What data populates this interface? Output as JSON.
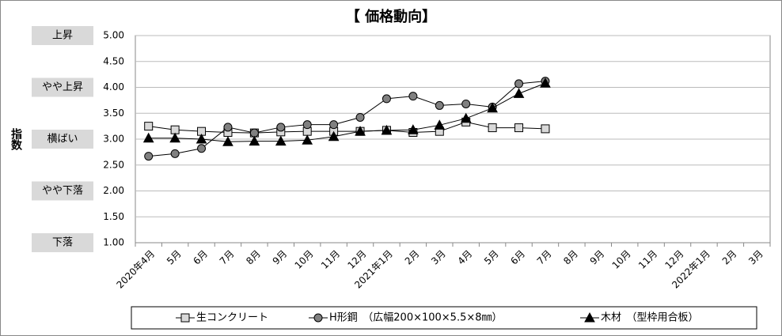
{
  "chart_data": {
    "type": "line",
    "title": "【 価格動向】",
    "y_label": "指数",
    "categories": [
      "2020年4月",
      "5月",
      "6月",
      "7月",
      "8月",
      "9月",
      "10月",
      "11月",
      "12月",
      "2021年1月",
      "2月",
      "3月",
      "4月",
      "5月",
      "6月",
      "7月",
      "8月",
      "9月",
      "10月",
      "11月",
      "12月",
      "2022年1月",
      "2月",
      "3月"
    ],
    "series": [
      {
        "name": "生コンクリート",
        "color": "#000000",
        "marker": "square",
        "marker_color": "#d9d9d9",
        "values": [
          3.25,
          3.18,
          3.15,
          3.13,
          3.12,
          3.14,
          3.15,
          3.15,
          3.15,
          3.17,
          3.13,
          3.15,
          3.33,
          3.22,
          3.22,
          3.2,
          null,
          null,
          null,
          null,
          null,
          null,
          null,
          null
        ]
      },
      {
        "name": "H形鋼　（広幅200×100×5.5×8㎜）",
        "color": "#000000",
        "marker": "circle",
        "marker_color": "#808080",
        "values": [
          2.67,
          2.72,
          2.82,
          3.23,
          3.12,
          3.23,
          3.28,
          3.28,
          3.42,
          3.78,
          3.83,
          3.65,
          3.68,
          3.62,
          4.07,
          4.12,
          null,
          null,
          null,
          null,
          null,
          null,
          null,
          null
        ]
      },
      {
        "name": "木材　（型枠用合板）",
        "color": "#000000",
        "marker": "triangle",
        "marker_color": "#000000",
        "values": [
          3.02,
          3.02,
          3.0,
          2.95,
          2.96,
          2.96,
          2.98,
          3.05,
          3.15,
          3.17,
          3.18,
          3.27,
          3.4,
          3.6,
          3.88,
          4.08,
          null,
          null,
          null,
          null,
          null,
          null,
          null,
          null
        ]
      }
    ],
    "ylim": [
      1,
      5
    ],
    "yticks": [
      {
        "value": 1,
        "label": "1.00"
      },
      {
        "value": 1.5,
        "label": "1.50"
      },
      {
        "value": 2,
        "label": "2.00"
      },
      {
        "value": 2.5,
        "label": "2.50"
      },
      {
        "value": 3,
        "label": "3.00"
      },
      {
        "value": 3.5,
        "label": "3.50"
      },
      {
        "value": 4,
        "label": "4.00"
      },
      {
        "value": 4.5,
        "label": "4.50"
      },
      {
        "value": 5,
        "label": "5.00"
      }
    ],
    "level_labels": [
      {
        "value": 5,
        "label": "上昇"
      },
      {
        "value": 4,
        "label": "やや上昇"
      },
      {
        "value": 3,
        "label": "横ばい"
      },
      {
        "value": 2,
        "label": "やや下落"
      },
      {
        "value": 1,
        "label": "下落"
      }
    ],
    "grid": true,
    "legend": "bottom"
  }
}
